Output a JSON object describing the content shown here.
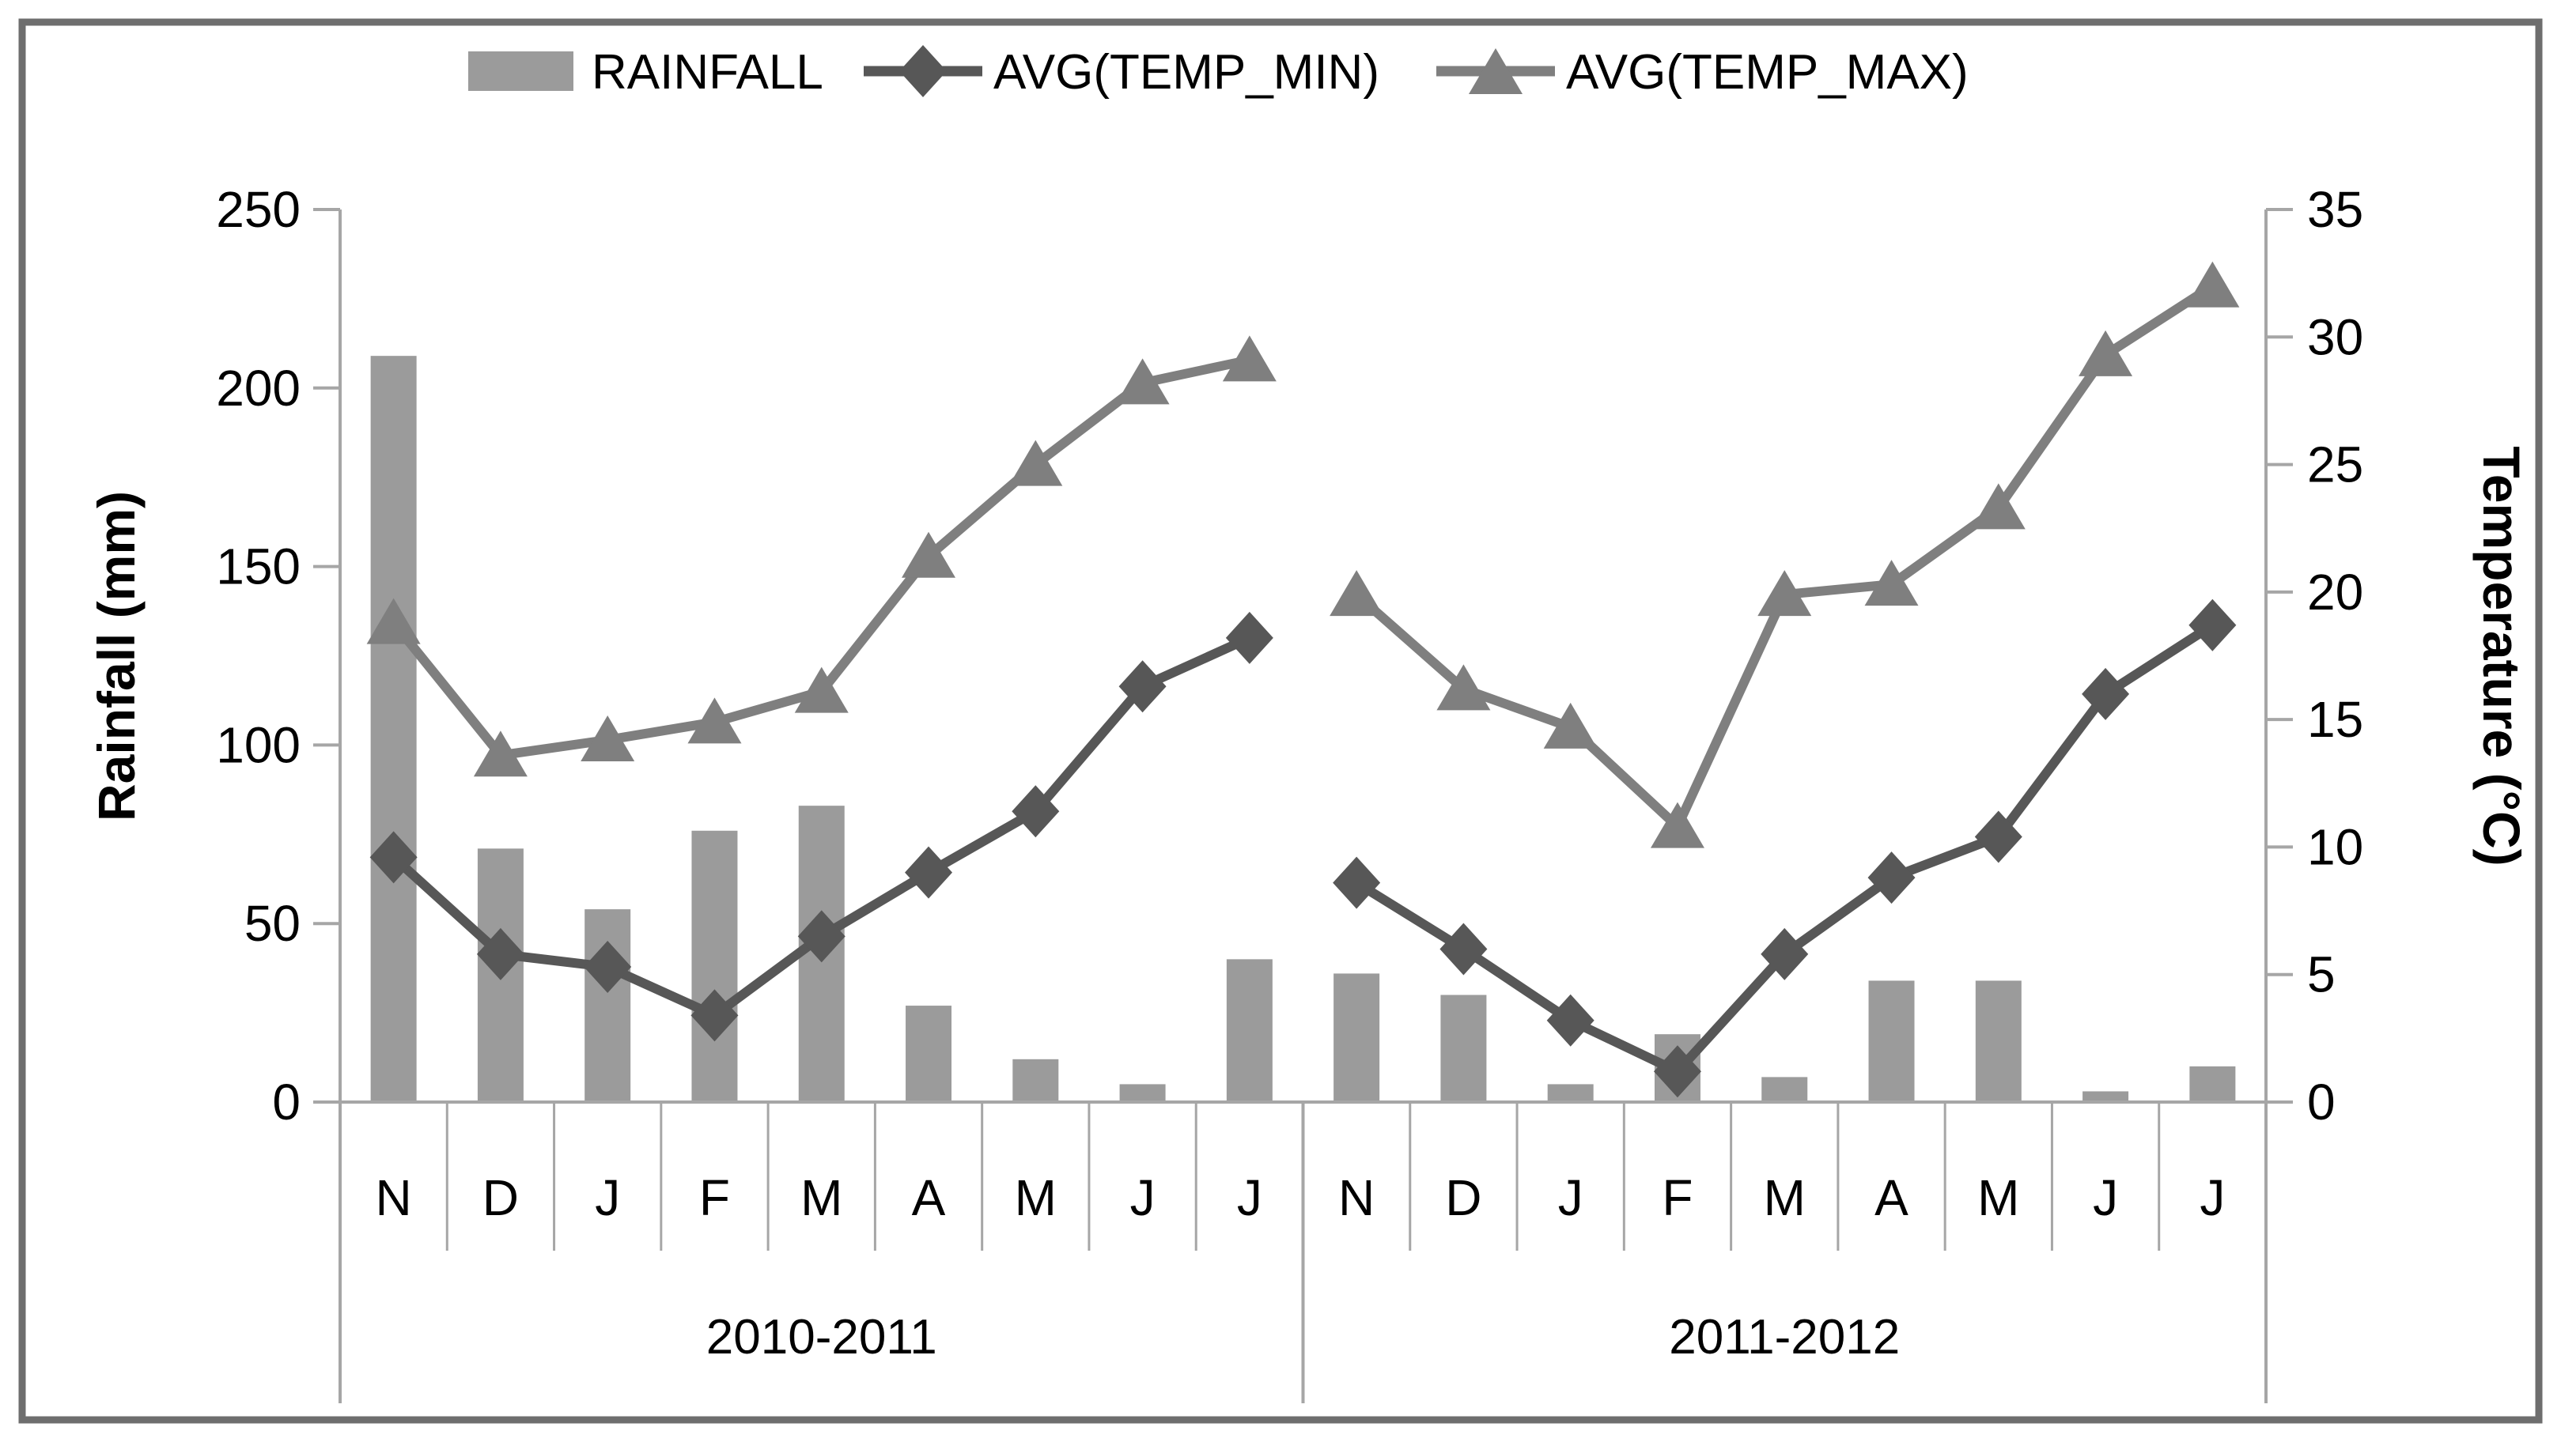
{
  "chart_data": {
    "type": "combo-bar-line",
    "title": "",
    "categories": [
      "N",
      "D",
      "J",
      "F",
      "M",
      "A",
      "M",
      "J",
      "J",
      "N",
      "D",
      "J",
      "F",
      "M",
      "A",
      "M",
      "J",
      "J"
    ],
    "season_groups": [
      {
        "label": "2010-2011",
        "start": 0,
        "end": 8
      },
      {
        "label": "2011-2012",
        "start": 9,
        "end": 17
      }
    ],
    "series": [
      {
        "name": "RAINFALL",
        "type": "bar",
        "axis": "left",
        "color": "#9b9b9b",
        "values": [
          209,
          71,
          54,
          76,
          83,
          27,
          12,
          5,
          40,
          36,
          30,
          5,
          19,
          7,
          34,
          34,
          3,
          10
        ]
      },
      {
        "name": "AVG(TEMP_MIN)",
        "type": "line",
        "marker": "diamond",
        "axis": "right",
        "color": "#575757",
        "values": [
          9.6,
          5.8,
          5.3,
          3.4,
          6.5,
          9.0,
          11.4,
          16.3,
          18.2,
          8.6,
          6.0,
          3.2,
          1.2,
          5.8,
          8.8,
          10.4,
          16.0,
          18.7
        ]
      },
      {
        "name": "AVG(TEMP_MAX)",
        "type": "line",
        "marker": "triangle",
        "axis": "right",
        "color": "#7f7f7f",
        "values": [
          18.8,
          13.6,
          14.2,
          14.9,
          16.1,
          21.4,
          25.0,
          28.2,
          29.1,
          19.9,
          16.2,
          14.7,
          10.8,
          19.9,
          20.3,
          23.3,
          29.3,
          32.0
        ]
      }
    ],
    "left_axis": {
      "label": "Rainfall (mm)",
      "min": 0,
      "max": 250,
      "step": 50,
      "ticks": [
        0,
        50,
        100,
        150,
        200,
        250
      ]
    },
    "right_axis": {
      "label": "Temperature (°C)",
      "min": 0,
      "max": 35,
      "step": 5,
      "ticks": [
        0,
        5,
        10,
        15,
        20,
        25,
        30,
        35
      ]
    },
    "legend_position": "top",
    "grid": "off"
  },
  "style": {
    "background": "#ffffff",
    "frame_border_color": "#6e6e6e",
    "axis_line_color": "#a6a6a6",
    "text_color": "#000000",
    "bar_color": "#9b9b9b",
    "temp_min_color": "#575757",
    "temp_max_color": "#7f7f7f"
  }
}
